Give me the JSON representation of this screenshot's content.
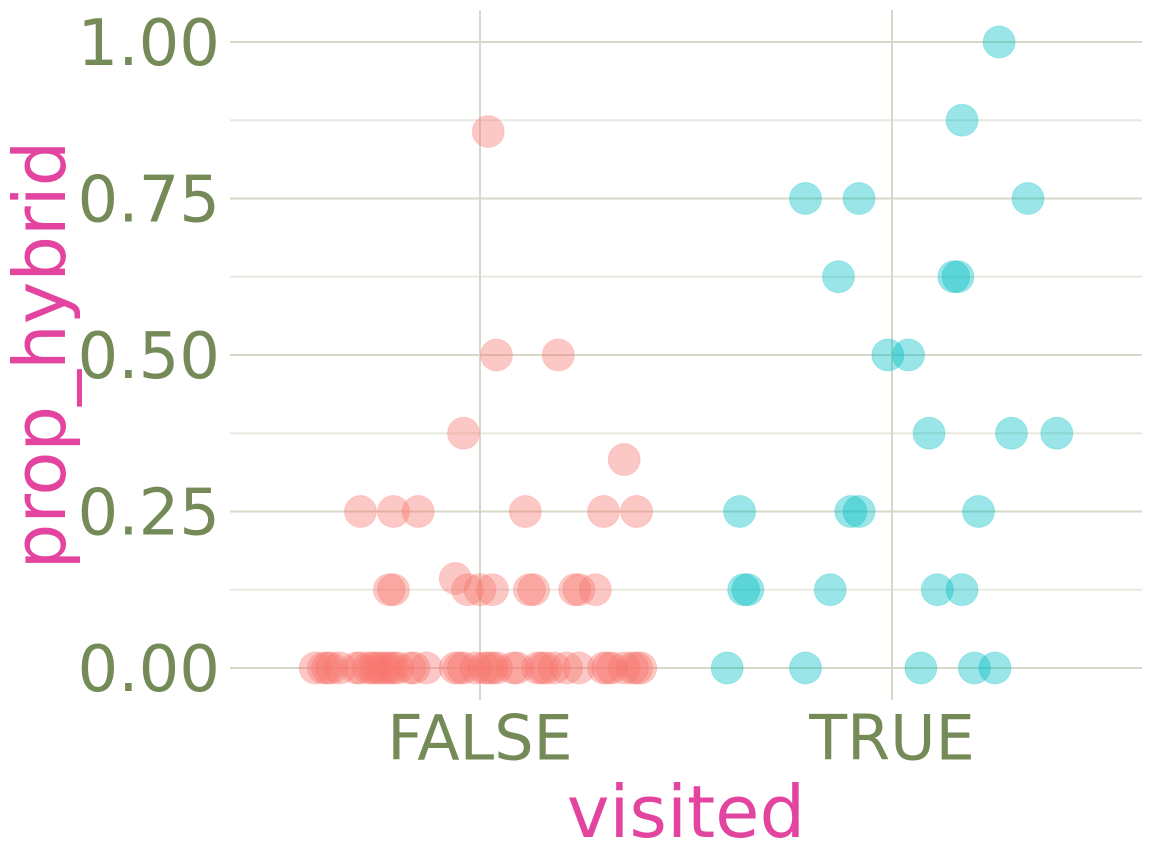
{
  "chart_data": {
    "type": "scatter",
    "xlabel": "visited",
    "ylabel": "prop_hybrid",
    "categories": [
      "FALSE",
      "TRUE"
    ],
    "ylim": [
      -0.05,
      1.04
    ],
    "y_ticks": [
      "0.00",
      "0.25",
      "0.50",
      "0.75",
      "1.00"
    ],
    "y_tick_values": [
      0,
      0.25,
      0.5,
      0.75,
      1
    ],
    "grid": true,
    "legend": "none",
    "point_alpha": 0.4,
    "series": [
      {
        "category": "FALSE",
        "color": "#f8766d",
        "points": [
          {
            "x": 0.02,
            "y": 0.857
          },
          {
            "x": 0.04,
            "y": 0.5
          },
          {
            "x": 0.19,
            "y": 0.5
          },
          {
            "x": -0.04,
            "y": 0.375
          },
          {
            "x": 0.35,
            "y": 0.333
          },
          {
            "x": -0.29,
            "y": 0.25
          },
          {
            "x": -0.21,
            "y": 0.25
          },
          {
            "x": -0.15,
            "y": 0.25
          },
          {
            "x": 0.11,
            "y": 0.25
          },
          {
            "x": 0.3,
            "y": 0.25
          },
          {
            "x": 0.38,
            "y": 0.25
          },
          {
            "x": -0.06,
            "y": 0.143
          },
          {
            "x": -0.22,
            "y": 0.125
          },
          {
            "x": -0.21,
            "y": 0.125
          },
          {
            "x": -0.03,
            "y": 0.125
          },
          {
            "x": 0.0,
            "y": 0.125
          },
          {
            "x": 0.03,
            "y": 0.125
          },
          {
            "x": 0.12,
            "y": 0.125
          },
          {
            "x": 0.13,
            "y": 0.125
          },
          {
            "x": 0.23,
            "y": 0.125
          },
          {
            "x": 0.24,
            "y": 0.125
          },
          {
            "x": 0.28,
            "y": 0.125
          },
          {
            "x": -0.4,
            "y": 0.0
          },
          {
            "x": -0.38,
            "y": 0.0
          },
          {
            "x": -0.37,
            "y": 0.0
          },
          {
            "x": -0.36,
            "y": 0.0
          },
          {
            "x": -0.34,
            "y": 0.0
          },
          {
            "x": -0.3,
            "y": 0.0
          },
          {
            "x": -0.29,
            "y": 0.0
          },
          {
            "x": -0.27,
            "y": 0.0
          },
          {
            "x": -0.26,
            "y": 0.0
          },
          {
            "x": -0.25,
            "y": 0.0
          },
          {
            "x": -0.24,
            "y": 0.0
          },
          {
            "x": -0.23,
            "y": 0.0
          },
          {
            "x": -0.22,
            "y": 0.0
          },
          {
            "x": -0.21,
            "y": 0.0
          },
          {
            "x": -0.2,
            "y": 0.0
          },
          {
            "x": -0.17,
            "y": 0.0
          },
          {
            "x": -0.16,
            "y": 0.0
          },
          {
            "x": -0.13,
            "y": 0.0
          },
          {
            "x": -0.06,
            "y": 0.0
          },
          {
            "x": -0.05,
            "y": 0.0
          },
          {
            "x": -0.04,
            "y": 0.0
          },
          {
            "x": -0.01,
            "y": 0.0
          },
          {
            "x": 0.01,
            "y": 0.0
          },
          {
            "x": 0.02,
            "y": 0.0
          },
          {
            "x": 0.03,
            "y": 0.0
          },
          {
            "x": 0.04,
            "y": 0.0
          },
          {
            "x": 0.08,
            "y": 0.0
          },
          {
            "x": 0.09,
            "y": 0.0
          },
          {
            "x": 0.14,
            "y": 0.0
          },
          {
            "x": 0.15,
            "y": 0.0
          },
          {
            "x": 0.16,
            "y": 0.0
          },
          {
            "x": 0.18,
            "y": 0.0
          },
          {
            "x": 0.21,
            "y": 0.0
          },
          {
            "x": 0.24,
            "y": 0.0
          },
          {
            "x": 0.3,
            "y": 0.0
          },
          {
            "x": 0.31,
            "y": 0.0
          },
          {
            "x": 0.32,
            "y": 0.0
          },
          {
            "x": 0.35,
            "y": 0.0
          },
          {
            "x": 0.37,
            "y": 0.0
          },
          {
            "x": 0.38,
            "y": 0.0
          },
          {
            "x": 0.39,
            "y": 0.0
          }
        ]
      },
      {
        "category": "TRUE",
        "color": "#00bfc4",
        "points": [
          {
            "x": 0.26,
            "y": 1.0
          },
          {
            "x": 0.17,
            "y": 0.875
          },
          {
            "x": -0.21,
            "y": 0.75
          },
          {
            "x": -0.08,
            "y": 0.75
          },
          {
            "x": 0.33,
            "y": 0.75
          },
          {
            "x": -0.13,
            "y": 0.625
          },
          {
            "x": 0.15,
            "y": 0.625
          },
          {
            "x": 0.16,
            "y": 0.625
          },
          {
            "x": -0.01,
            "y": 0.5
          },
          {
            "x": 0.04,
            "y": 0.5
          },
          {
            "x": 0.09,
            "y": 0.375
          },
          {
            "x": 0.29,
            "y": 0.375
          },
          {
            "x": 0.4,
            "y": 0.375
          },
          {
            "x": -0.37,
            "y": 0.25
          },
          {
            "x": -0.1,
            "y": 0.25
          },
          {
            "x": -0.08,
            "y": 0.25
          },
          {
            "x": 0.21,
            "y": 0.25
          },
          {
            "x": -0.36,
            "y": 0.125
          },
          {
            "x": -0.35,
            "y": 0.125
          },
          {
            "x": -0.15,
            "y": 0.125
          },
          {
            "x": 0.11,
            "y": 0.125
          },
          {
            "x": 0.17,
            "y": 0.125
          },
          {
            "x": -0.4,
            "y": 0.0
          },
          {
            "x": -0.21,
            "y": 0.0
          },
          {
            "x": 0.07,
            "y": 0.0
          },
          {
            "x": 0.2,
            "y": 0.0
          },
          {
            "x": 0.25,
            "y": 0.0
          }
        ]
      }
    ]
  }
}
